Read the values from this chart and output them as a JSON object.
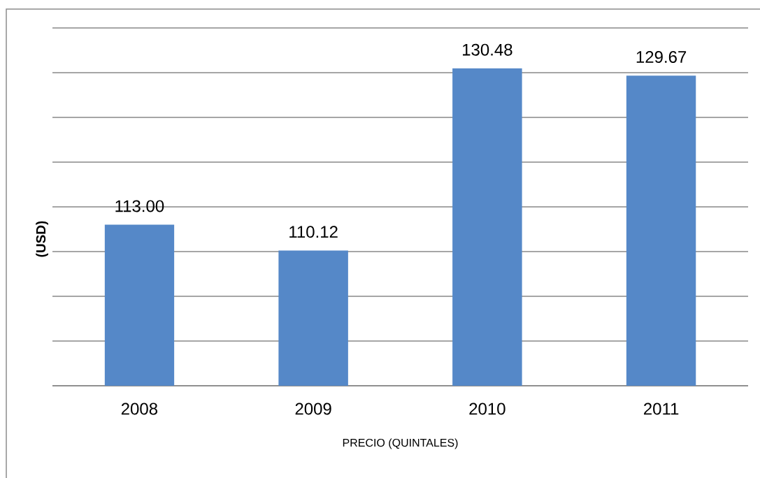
{
  "chart_data": {
    "type": "bar",
    "xlabel": "PRECIO (QUINTALES)",
    "ylabel": "(USD)",
    "categories": [
      "2008",
      "2009",
      "2010",
      "2011"
    ],
    "values": [
      113,
      110.12,
      130.48,
      129.67
    ],
    "value_labels": [
      "113.00",
      "110.12",
      "130.48",
      "129.67"
    ],
    "color": "#5588c8",
    "ylim": [
      95,
      135
    ],
    "yticks": [
      {
        "value": 95,
        "label": null
      },
      {
        "value": 100,
        "label": null
      },
      {
        "value": 105,
        "label": null
      },
      {
        "value": 110,
        "label": null
      },
      {
        "value": 115,
        "label": null
      },
      {
        "value": 120,
        "label": null
      },
      {
        "value": 125,
        "label": null
      },
      {
        "value": 130,
        "label": null
      },
      {
        "value": 135,
        "label": null
      }
    ],
    "grid": "y",
    "tick_labels": "x"
  }
}
